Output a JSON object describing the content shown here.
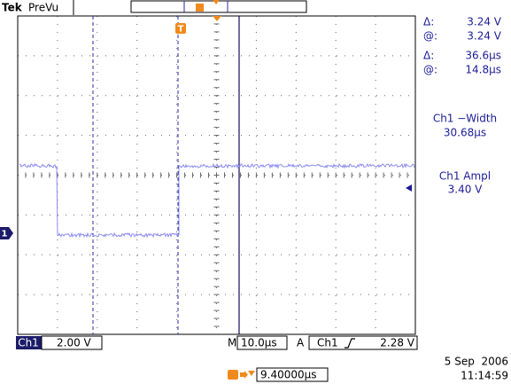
{
  "header": {
    "brand": "Tek",
    "mode": "PreVu"
  },
  "markers": {
    "trigger": "T",
    "ground": "1"
  },
  "cursors": [
    {
      "delta_label": "Δ:",
      "delta": "3.24 V",
      "at_label": "@:",
      "at": "3.24 V"
    },
    {
      "delta_label": "Δ:",
      "delta": "36.6µs",
      "at_label": "@:",
      "at": "14.8µs"
    }
  ],
  "measurements": [
    {
      "name": "Ch1 −Width",
      "value": "30.68µs"
    },
    {
      "name": "Ch1 Ampl",
      "value": "3.40 V"
    }
  ],
  "footer": {
    "channel": "Ch1",
    "scale": "2.00 V",
    "timebase_label": "M",
    "timebase": "10.0µs",
    "trigger_label": "A",
    "trigger_source": "Ch1",
    "trigger_level": "2.28 V",
    "trigger_position": "9.40000µs",
    "date": "5 Sep  2006",
    "time": "11:14:59"
  }
}
